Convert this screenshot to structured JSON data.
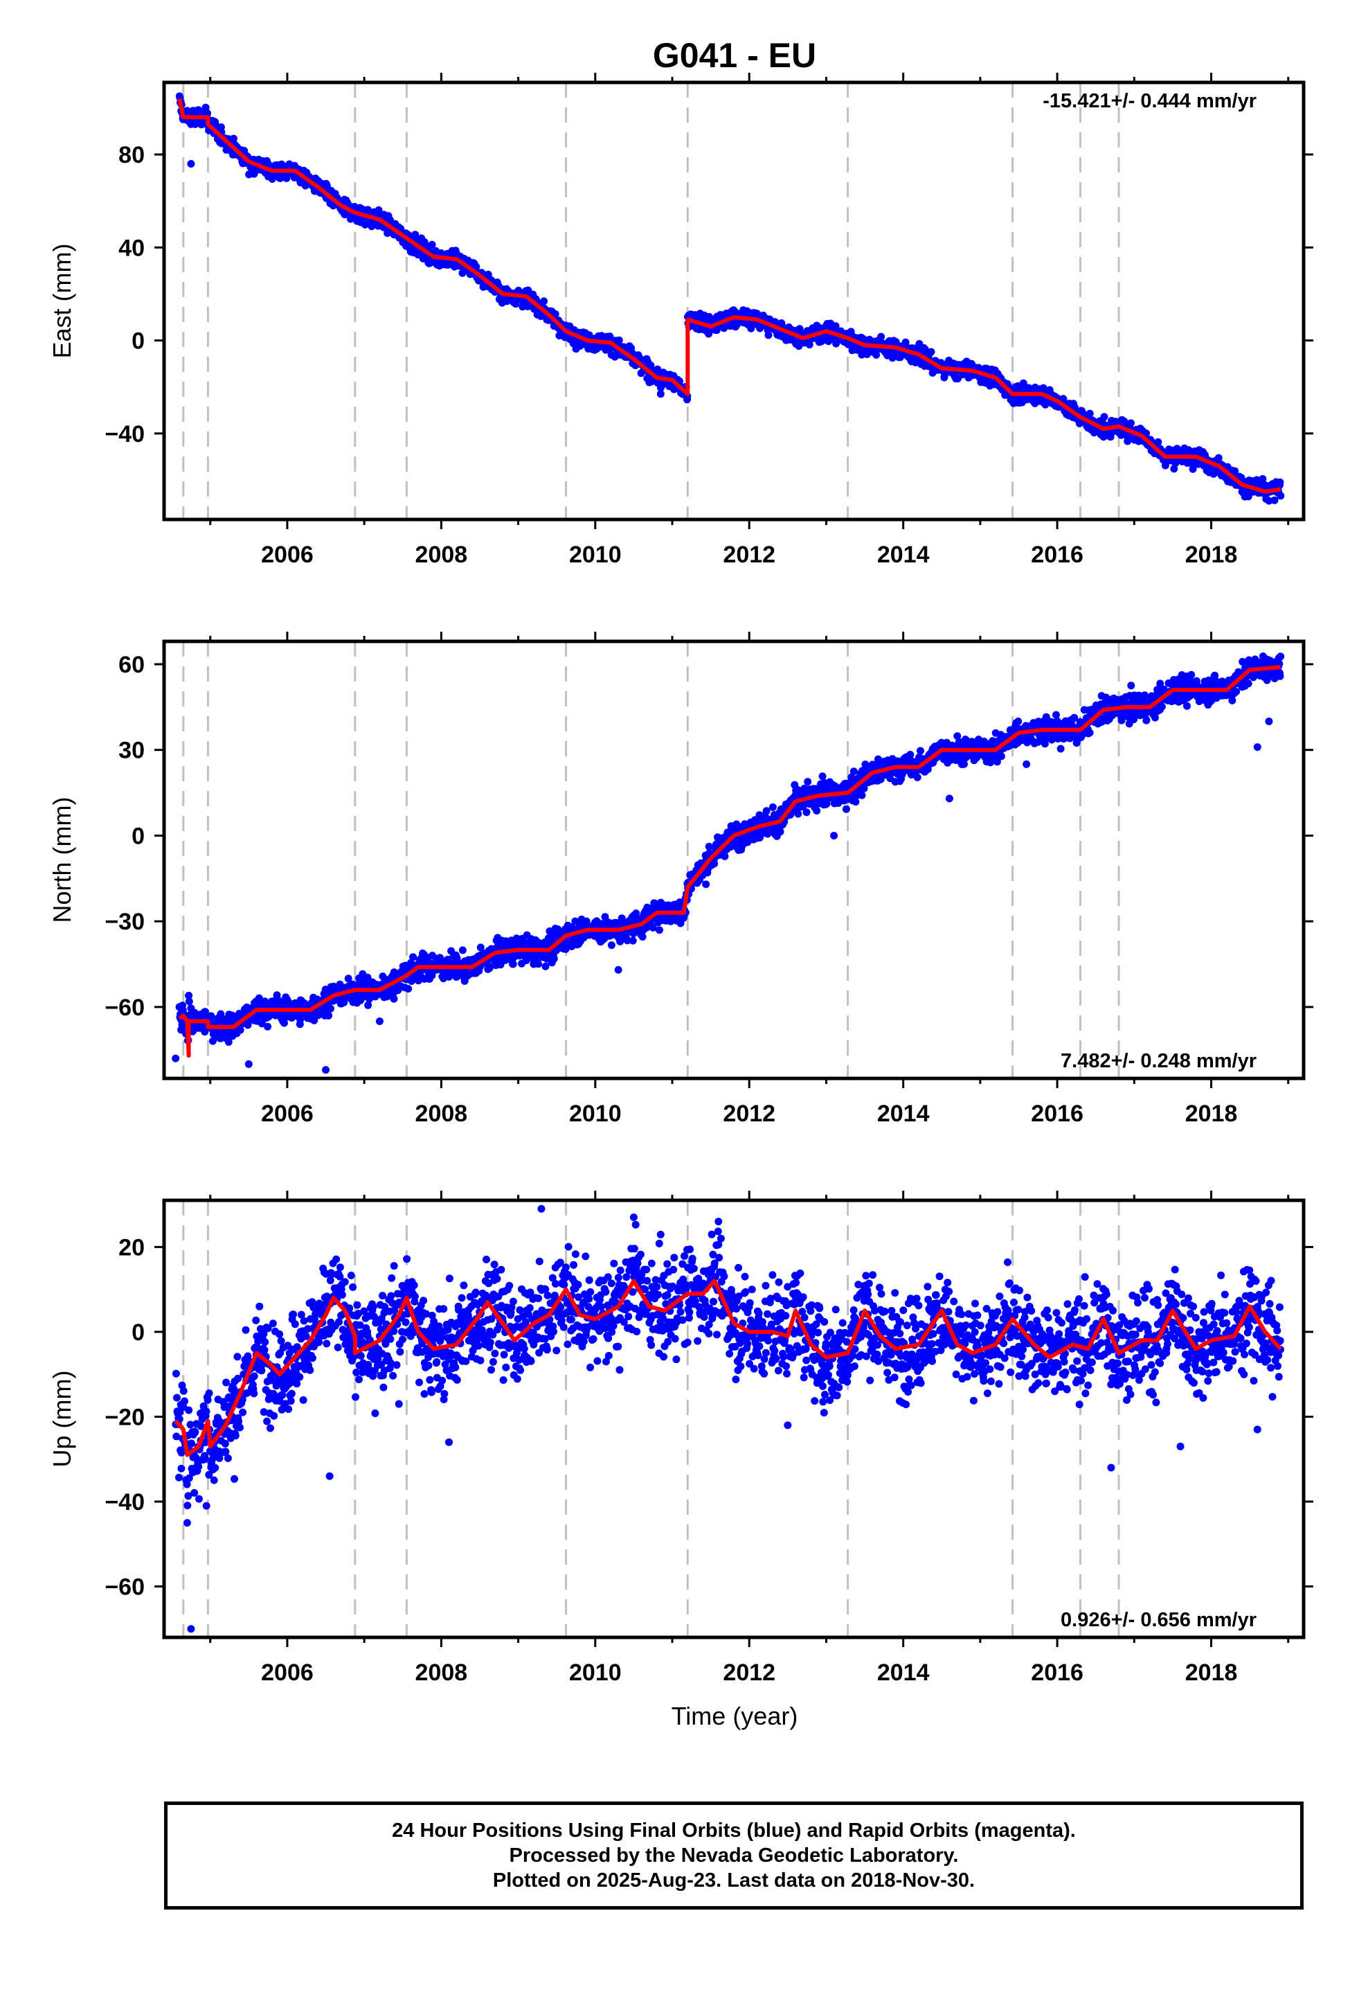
{
  "title": "G041 - EU",
  "x_label": "Time (year)",
  "footer": {
    "line1": "24 Hour Positions Using Final Orbits (blue) and Rapid Orbits (magenta).",
    "line2": "Processed by the Nevada Geodetic Laboratory.",
    "line3": "Plotted on 2025-Aug-23. Last data on 2018-Nov-30."
  },
  "colors": {
    "data": "#0000ff",
    "model": "#ff0000",
    "steps": "#c0c0c0",
    "frame": "#000000"
  },
  "chart_data": [
    {
      "type": "scatter",
      "component": "East",
      "ylabel": "East (mm)",
      "rate_text": "-15.421+/- 0.444 mm/yr",
      "rate_position": "top-right",
      "xlim": [
        2004.4,
        2019.2
      ],
      "ylim": [
        -77,
        111
      ],
      "x_ticks": [
        2006,
        2008,
        2010,
        2012,
        2014,
        2016,
        2018
      ],
      "y_ticks": [
        80,
        40,
        0,
        -40
      ],
      "y_tick_labels": [
        "80",
        "40",
        "0",
        "−40"
      ],
      "step_dates": [
        2004.65,
        2004.97,
        2006.88,
        2007.55,
        2009.62,
        2011.2,
        2013.28,
        2015.42,
        2016.3,
        2016.8
      ],
      "model": [
        [
          2004.6,
          104
        ],
        [
          2004.65,
          96
        ],
        [
          2004.97,
          96
        ],
        [
          2004.97,
          93
        ],
        [
          2005.2,
          86
        ],
        [
          2005.5,
          77
        ],
        [
          2005.8,
          73
        ],
        [
          2006.1,
          73
        ],
        [
          2006.4,
          66
        ],
        [
          2006.7,
          58
        ],
        [
          2006.88,
          55
        ],
        [
          2007.2,
          52
        ],
        [
          2007.55,
          44
        ],
        [
          2007.9,
          36
        ],
        [
          2008.2,
          35
        ],
        [
          2008.5,
          28
        ],
        [
          2008.8,
          20
        ],
        [
          2009.1,
          19
        ],
        [
          2009.4,
          11
        ],
        [
          2009.62,
          4
        ],
        [
          2009.9,
          0
        ],
        [
          2010.2,
          -1
        ],
        [
          2010.5,
          -8
        ],
        [
          2010.8,
          -16
        ],
        [
          2011.0,
          -17
        ],
        [
          2011.2,
          -23
        ],
        [
          2011.2,
          9
        ],
        [
          2011.5,
          6
        ],
        [
          2011.8,
          10
        ],
        [
          2012.1,
          9
        ],
        [
          2012.4,
          5
        ],
        [
          2012.7,
          1
        ],
        [
          2013.0,
          4
        ],
        [
          2013.28,
          1
        ],
        [
          2013.5,
          -2
        ],
        [
          2013.9,
          -3
        ],
        [
          2014.2,
          -6
        ],
        [
          2014.5,
          -12
        ],
        [
          2014.9,
          -13
        ],
        [
          2015.2,
          -16
        ],
        [
          2015.42,
          -23
        ],
        [
          2015.8,
          -23
        ],
        [
          2016.0,
          -26
        ],
        [
          2016.3,
          -33
        ],
        [
          2016.6,
          -38
        ],
        [
          2016.8,
          -37
        ],
        [
          2017.1,
          -41
        ],
        [
          2017.4,
          -50
        ],
        [
          2017.8,
          -50
        ],
        [
          2018.1,
          -54
        ],
        [
          2018.4,
          -62
        ],
        [
          2018.7,
          -65
        ],
        [
          2018.9,
          -64
        ]
      ],
      "scatter_sigma": 1.8,
      "scatter_outliers": [
        [
          2004.75,
          76
        ],
        [
          2010.85,
          -23
        ],
        [
          2018.75,
          -69
        ]
      ]
    },
    {
      "type": "scatter",
      "component": "North",
      "ylabel": "North (mm)",
      "rate_text": "7.482+/- 0.248 mm/yr",
      "rate_position": "bottom-right",
      "xlim": [
        2004.4,
        2019.2
      ],
      "ylim": [
        -85,
        68
      ],
      "x_ticks": [
        2006,
        2008,
        2010,
        2012,
        2014,
        2016,
        2018
      ],
      "y_ticks": [
        60,
        30,
        0,
        -30,
        -60
      ],
      "y_tick_labels": [
        "60",
        "30",
        "0",
        "−30",
        "−60"
      ],
      "step_dates": [
        2004.65,
        2004.97,
        2006.88,
        2007.55,
        2009.62,
        2011.2,
        2013.28,
        2015.42,
        2016.3,
        2016.8
      ],
      "model": [
        [
          2004.6,
          -64
        ],
        [
          2004.65,
          -63
        ],
        [
          2004.7,
          -65
        ],
        [
          2004.72,
          -77
        ],
        [
          2004.72,
          -65
        ],
        [
          2004.97,
          -65
        ],
        [
          2004.97,
          -67
        ],
        [
          2005.3,
          -67
        ],
        [
          2005.6,
          -61
        ],
        [
          2006.0,
          -61
        ],
        [
          2006.3,
          -61
        ],
        [
          2006.6,
          -56
        ],
        [
          2006.88,
          -54
        ],
        [
          2007.2,
          -54
        ],
        [
          2007.55,
          -49
        ],
        [
          2007.7,
          -46
        ],
        [
          2008.1,
          -46
        ],
        [
          2008.4,
          -46
        ],
        [
          2008.7,
          -41
        ],
        [
          2009.0,
          -40
        ],
        [
          2009.4,
          -40
        ],
        [
          2009.62,
          -35
        ],
        [
          2009.9,
          -33
        ],
        [
          2010.3,
          -33
        ],
        [
          2010.6,
          -31
        ],
        [
          2010.8,
          -27
        ],
        [
          2011.15,
          -27
        ],
        [
          2011.2,
          -18
        ],
        [
          2011.5,
          -8
        ],
        [
          2011.8,
          0
        ],
        [
          2012.1,
          3
        ],
        [
          2012.4,
          5
        ],
        [
          2012.6,
          12
        ],
        [
          2012.9,
          14
        ],
        [
          2013.28,
          15
        ],
        [
          2013.6,
          22
        ],
        [
          2013.9,
          24
        ],
        [
          2014.2,
          24
        ],
        [
          2014.5,
          30
        ],
        [
          2014.8,
          30
        ],
        [
          2015.2,
          30
        ],
        [
          2015.5,
          36
        ],
        [
          2015.8,
          37
        ],
        [
          2016.3,
          37
        ],
        [
          2016.6,
          44
        ],
        [
          2016.9,
          45
        ],
        [
          2017.2,
          45
        ],
        [
          2017.5,
          51
        ],
        [
          2017.8,
          51
        ],
        [
          2018.2,
          51
        ],
        [
          2018.5,
          58
        ],
        [
          2018.9,
          59
        ]
      ],
      "scatter_sigma": 2.2,
      "scatter_outliers": [
        [
          2004.55,
          -78
        ],
        [
          2004.72,
          -56
        ],
        [
          2005.5,
          -80
        ],
        [
          2006.5,
          -82
        ],
        [
          2007.2,
          -65
        ],
        [
          2009.2,
          -45
        ],
        [
          2010.3,
          -47
        ],
        [
          2013.1,
          0
        ],
        [
          2014.6,
          13
        ],
        [
          2015.6,
          25
        ],
        [
          2018.6,
          31
        ],
        [
          2018.75,
          40
        ]
      ]
    },
    {
      "type": "scatter",
      "component": "Up",
      "ylabel": "Up (mm)",
      "rate_text": "0.926+/- 0.656 mm/yr",
      "rate_position": "bottom-right",
      "xlim": [
        2004.4,
        2019.2
      ],
      "ylim": [
        -72,
        31
      ],
      "x_ticks": [
        2006,
        2008,
        2010,
        2012,
        2014,
        2016,
        2018
      ],
      "y_ticks": [
        20,
        0,
        -20,
        -40,
        -60
      ],
      "y_tick_labels": [
        "20",
        "0",
        "−20",
        "−40",
        "−60"
      ],
      "step_dates": [
        2004.65,
        2004.97,
        2006.88,
        2007.55,
        2009.62,
        2011.2,
        2013.28,
        2015.42,
        2016.3,
        2016.8
      ],
      "model": [
        [
          2004.55,
          -21
        ],
        [
          2004.65,
          -23
        ],
        [
          2004.7,
          -29
        ],
        [
          2004.85,
          -27
        ],
        [
          2004.97,
          -21
        ],
        [
          2005.0,
          -27
        ],
        [
          2005.2,
          -22
        ],
        [
          2005.4,
          -14
        ],
        [
          2005.6,
          -5
        ],
        [
          2005.8,
          -8
        ],
        [
          2005.9,
          -10
        ],
        [
          2006.1,
          -6
        ],
        [
          2006.3,
          -2
        ],
        [
          2006.5,
          4
        ],
        [
          2006.6,
          8
        ],
        [
          2006.75,
          5
        ],
        [
          2006.88,
          -1
        ],
        [
          2006.88,
          -5
        ],
        [
          2007.2,
          -2
        ],
        [
          2007.45,
          4
        ],
        [
          2007.55,
          8
        ],
        [
          2007.7,
          0
        ],
        [
          2007.9,
          -4
        ],
        [
          2008.2,
          -3
        ],
        [
          2008.5,
          4
        ],
        [
          2008.6,
          7
        ],
        [
          2008.8,
          2
        ],
        [
          2008.95,
          -2
        ],
        [
          2009.2,
          2
        ],
        [
          2009.4,
          4
        ],
        [
          2009.62,
          10
        ],
        [
          2009.8,
          4
        ],
        [
          2010.0,
          3
        ],
        [
          2010.3,
          6
        ],
        [
          2010.5,
          12
        ],
        [
          2010.7,
          6
        ],
        [
          2010.9,
          5
        ],
        [
          2011.2,
          9
        ],
        [
          2011.4,
          9
        ],
        [
          2011.55,
          12
        ],
        [
          2011.8,
          2
        ],
        [
          2012.0,
          0
        ],
        [
          2012.3,
          0
        ],
        [
          2012.5,
          -1
        ],
        [
          2012.6,
          5
        ],
        [
          2012.8,
          -3
        ],
        [
          2013.0,
          -6
        ],
        [
          2013.28,
          -5
        ],
        [
          2013.5,
          5
        ],
        [
          2013.7,
          -1
        ],
        [
          2013.9,
          -4
        ],
        [
          2014.2,
          -3
        ],
        [
          2014.5,
          5
        ],
        [
          2014.7,
          -3
        ],
        [
          2014.9,
          -5
        ],
        [
          2015.2,
          -3
        ],
        [
          2015.42,
          3
        ],
        [
          2015.7,
          -3
        ],
        [
          2015.9,
          -6
        ],
        [
          2016.2,
          -3
        ],
        [
          2016.4,
          -4
        ],
        [
          2016.6,
          3
        ],
        [
          2016.8,
          -5
        ],
        [
          2017.1,
          -2
        ],
        [
          2017.3,
          -2
        ],
        [
          2017.5,
          5
        ],
        [
          2017.8,
          -4
        ],
        [
          2018.0,
          -2
        ],
        [
          2018.3,
          -1
        ],
        [
          2018.5,
          6
        ],
        [
          2018.7,
          0
        ],
        [
          2018.9,
          -4
        ]
      ],
      "scatter_sigma": 5.5,
      "scatter_outliers": [
        [
          2004.7,
          -45
        ],
        [
          2004.75,
          -70
        ],
        [
          2004.95,
          -41
        ],
        [
          2006.55,
          -34
        ],
        [
          2007.45,
          -17
        ],
        [
          2008.1,
          -26
        ],
        [
          2009.3,
          29
        ],
        [
          2010.5,
          27
        ],
        [
          2011.6,
          26
        ],
        [
          2012.5,
          -22
        ],
        [
          2016.7,
          -32
        ],
        [
          2017.6,
          -27
        ],
        [
          2018.6,
          -23
        ]
      ]
    }
  ]
}
